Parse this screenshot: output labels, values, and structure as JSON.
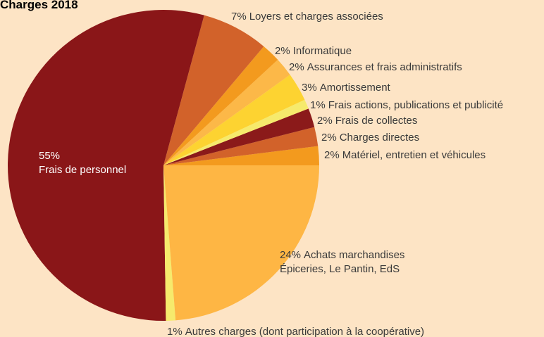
{
  "chart_data": {
    "type": "pie",
    "title": "Charges 2018",
    "categories": [
      "Matériel, entretien et véhicules",
      "Charges directes",
      "Frais de collectes",
      "Frais actions, publications et publicité",
      "Amortissement",
      "Assurances et frais administratifs",
      "Informatique",
      "Loyers et charges associées",
      [
        "Frais de personnel"
      ],
      "Autres charges (dont participation à la coopérative)",
      [
        "Achats marchandises",
        "Épiceries, Le Pantin, EdS"
      ]
    ],
    "values": [
      2,
      2,
      2,
      1,
      3,
      2,
      2,
      7,
      55,
      1,
      24
    ],
    "value_labels": [
      "2%",
      "2%",
      "2%",
      "1%",
      "3%",
      "2%",
      "2%",
      "7%",
      "55%",
      "1%",
      "24%"
    ],
    "colors": [
      "#f39a1e",
      "#d2622a",
      "#8b1a1a",
      "#f6ea6c",
      "#fdd331",
      "#fcb848",
      "#f39a1e",
      "#d2622a",
      "#8a1618",
      "#f6ea6c",
      "#feb644"
    ]
  }
}
